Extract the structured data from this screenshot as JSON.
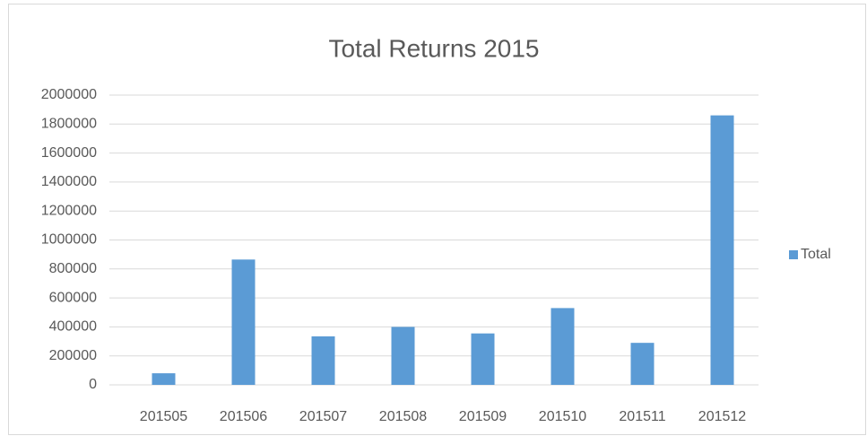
{
  "chart_data": {
    "type": "bar",
    "title": "Total Returns 2015",
    "categories": [
      "201505",
      "201506",
      "201507",
      "201508",
      "201509",
      "201510",
      "201511",
      "201512"
    ],
    "series": [
      {
        "name": "Total",
        "color": "#5b9bd5",
        "values": [
          80000,
          865000,
          335000,
          400000,
          355000,
          530000,
          290000,
          1860000
        ]
      }
    ],
    "ylim": [
      0,
      2000000
    ],
    "yticks": [
      0,
      200000,
      400000,
      600000,
      800000,
      1000000,
      1200000,
      1400000,
      1600000,
      1800000,
      2000000
    ],
    "grid": true,
    "legend": "right"
  }
}
